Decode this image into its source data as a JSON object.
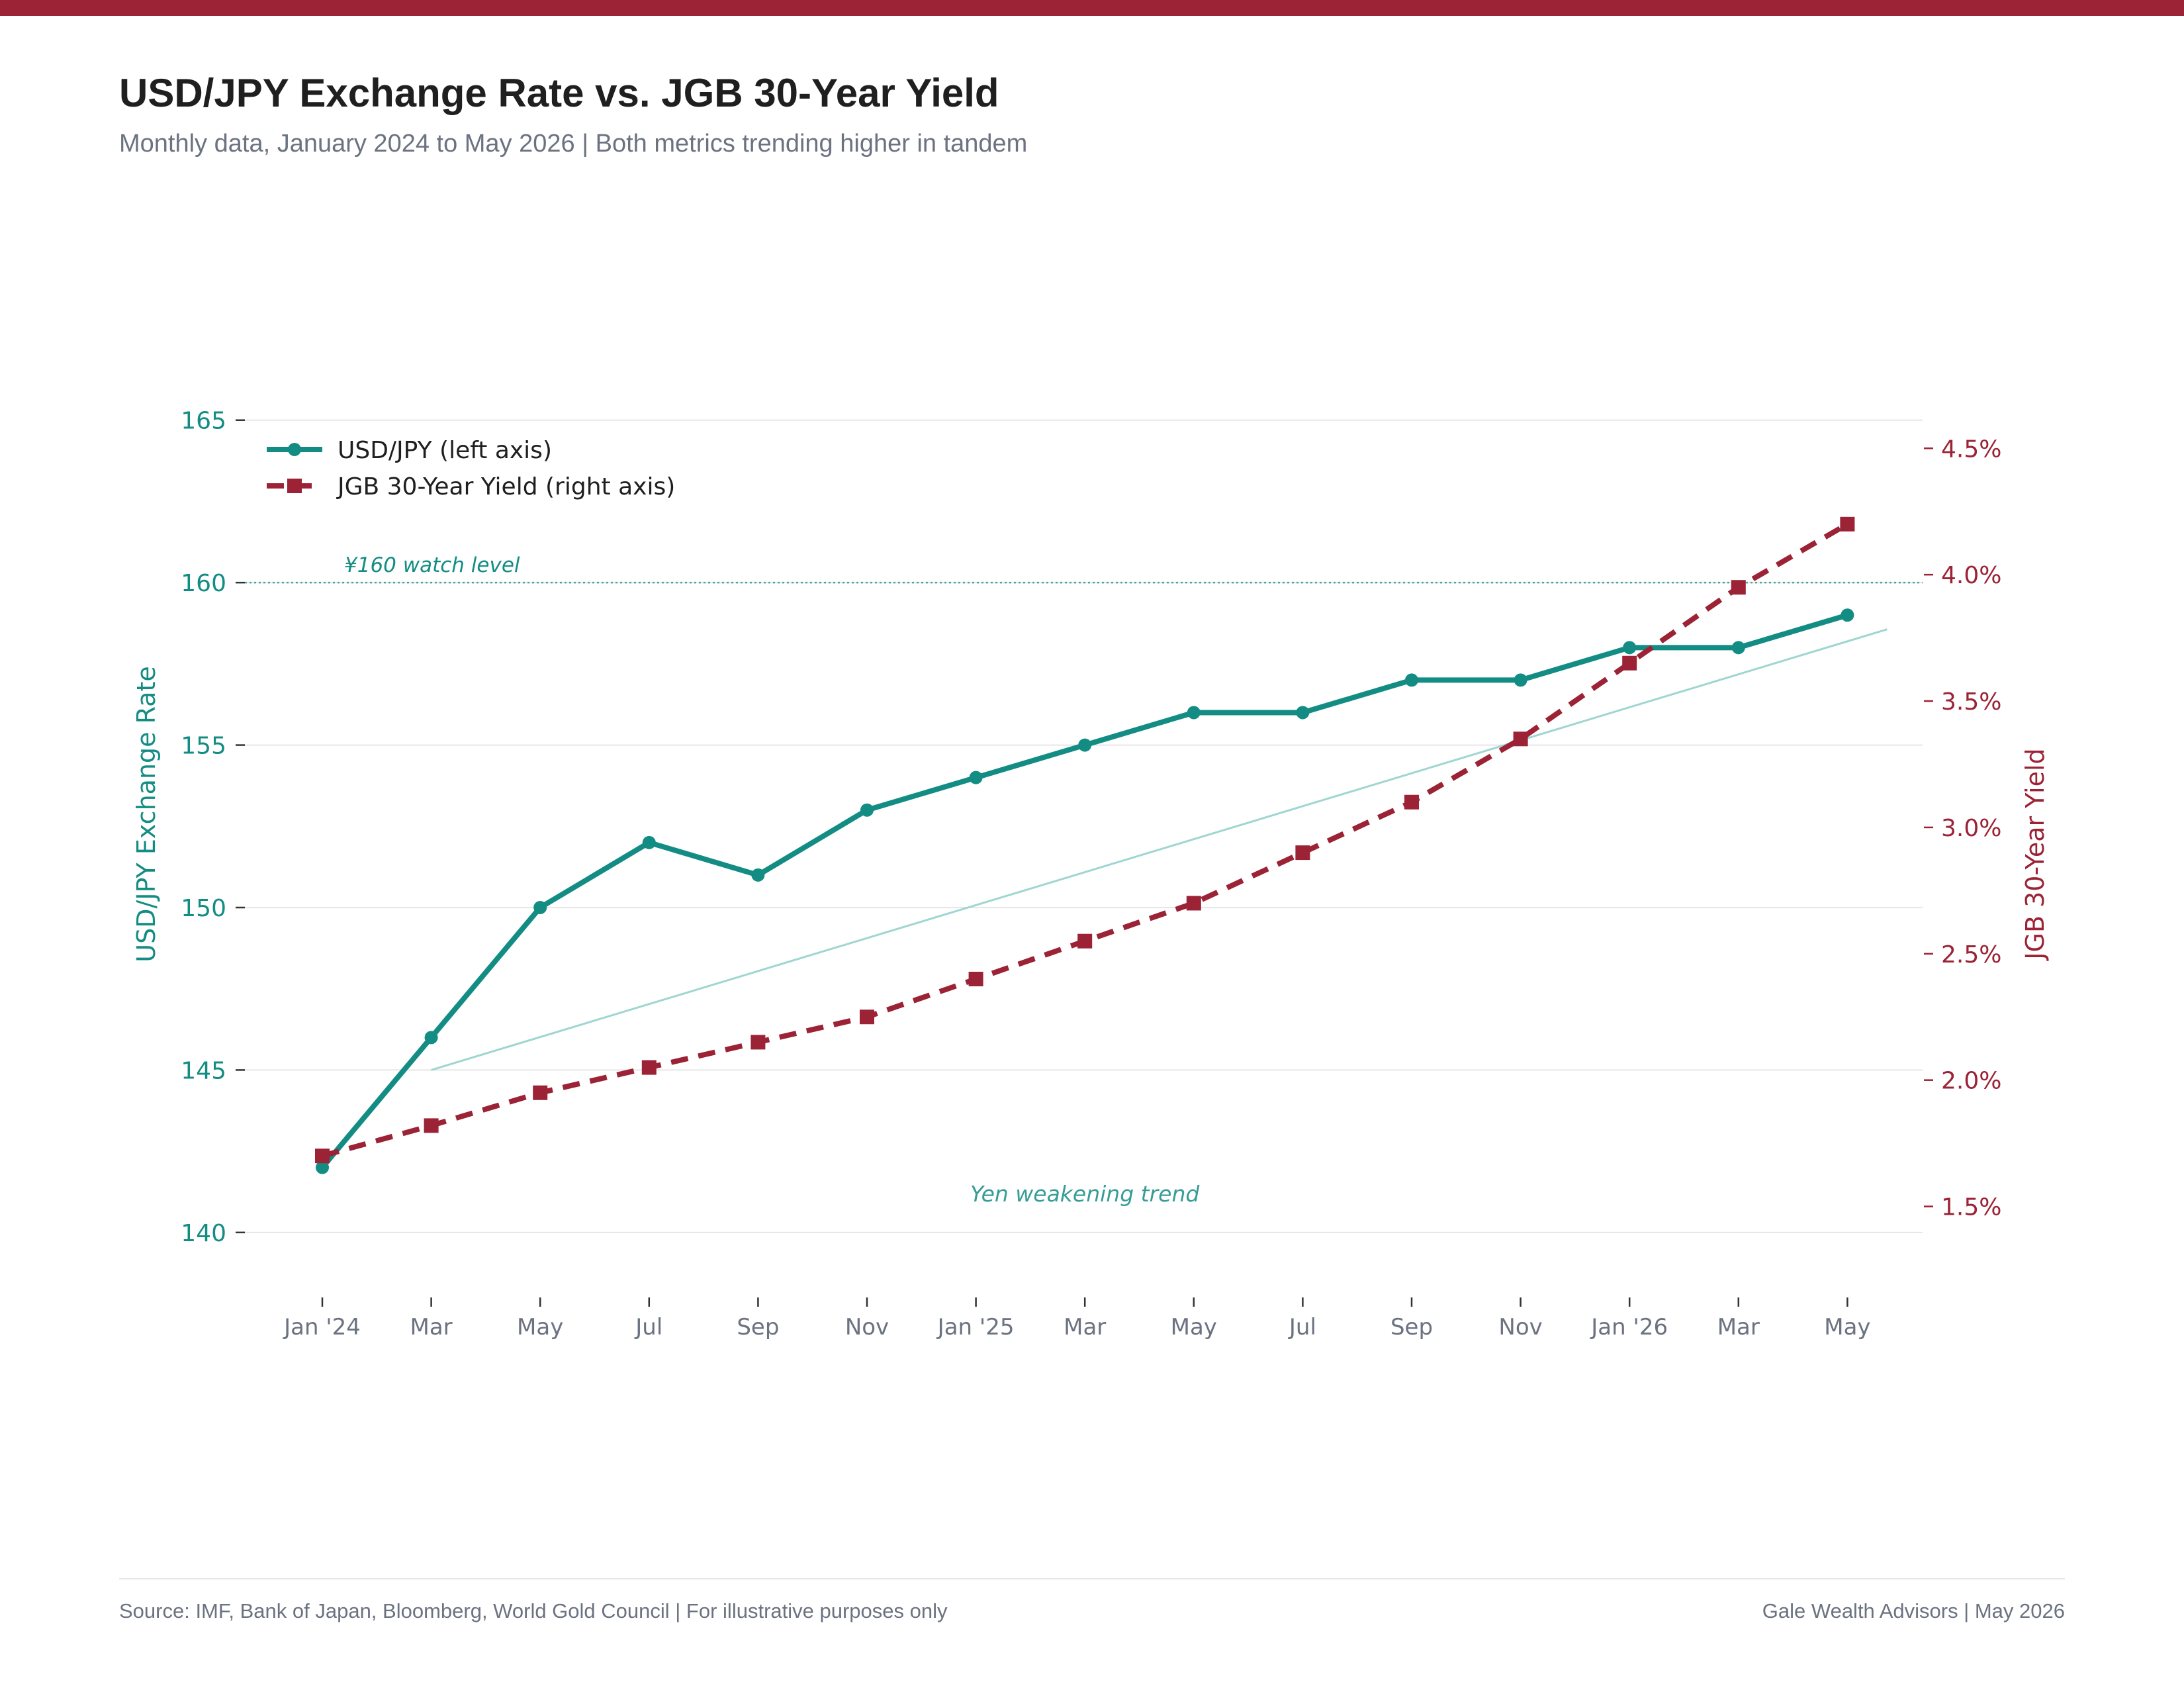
{
  "header": {
    "title": "USD/JPY Exchange Rate vs. JGB 30-Year Yield",
    "subtitle": "Monthly data, January 2024 to May 2026  |  Both metrics trending higher in tandem"
  },
  "colors": {
    "accent_bar": "#9b2335",
    "usdjpy": "#138d84",
    "jgb": "#9b2335",
    "trend": "#9fd6d1",
    "grid": "#e6e6e6",
    "tick_text": "#6b7280"
  },
  "chart_data": {
    "type": "line",
    "x": [
      "Jan '24",
      "Mar",
      "May",
      "Jul",
      "Sep",
      "Nov",
      "Jan '25",
      "Mar",
      "May",
      "Jul",
      "Sep",
      "Nov",
      "Jan '26",
      "Mar",
      "May"
    ],
    "series": [
      {
        "name": "USD/JPY (left axis)",
        "axis": "left",
        "style": "solid",
        "marker": "circle",
        "values": [
          142,
          146,
          150,
          152,
          151,
          153,
          154,
          155,
          156,
          156,
          157,
          157,
          158,
          158,
          159
        ]
      },
      {
        "name": "JGB 30-Year Yield (right axis)",
        "axis": "right",
        "style": "dashed",
        "marker": "square",
        "values": [
          1.7,
          1.82,
          1.95,
          2.05,
          2.15,
          2.25,
          2.4,
          2.55,
          2.7,
          2.9,
          3.1,
          3.35,
          3.65,
          3.95,
          4.2
        ]
      }
    ],
    "trend_line": {
      "x": [
        "Mar",
        "May"
      ],
      "y": [
        145,
        158.4
      ]
    },
    "y_left": {
      "label": "USD/JPY Exchange Rate",
      "range": [
        138,
        165.3
      ],
      "ticks": [
        140,
        145,
        150,
        155,
        160,
        165
      ],
      "tick_labels": [
        "140",
        "145",
        "150",
        "155",
        "160",
        "165"
      ]
    },
    "y_right": {
      "label": "JGB 30-Year Yield",
      "range": [
        1.14,
        4.65
      ],
      "ticks": [
        1.5,
        2.0,
        2.5,
        3.0,
        3.5,
        4.0,
        4.5
      ],
      "tick_labels": [
        "1.5%",
        "2.0%",
        "2.5%",
        "3.0%",
        "3.5%",
        "4.0%",
        "4.5%"
      ]
    },
    "reference_line": {
      "axis": "left",
      "value": 160,
      "label": "¥160 watch level"
    },
    "annotations": [
      {
        "text": "Yen weakening trend",
        "x": 7,
        "y": 141.2
      }
    ],
    "grid": true,
    "legend_position": "top-left"
  },
  "footer": {
    "source": "Source: IMF, Bank of Japan, Bloomberg, World Gold Council  |  For illustrative purposes only",
    "credit": "Gale Wealth Advisors  |  May 2026"
  }
}
